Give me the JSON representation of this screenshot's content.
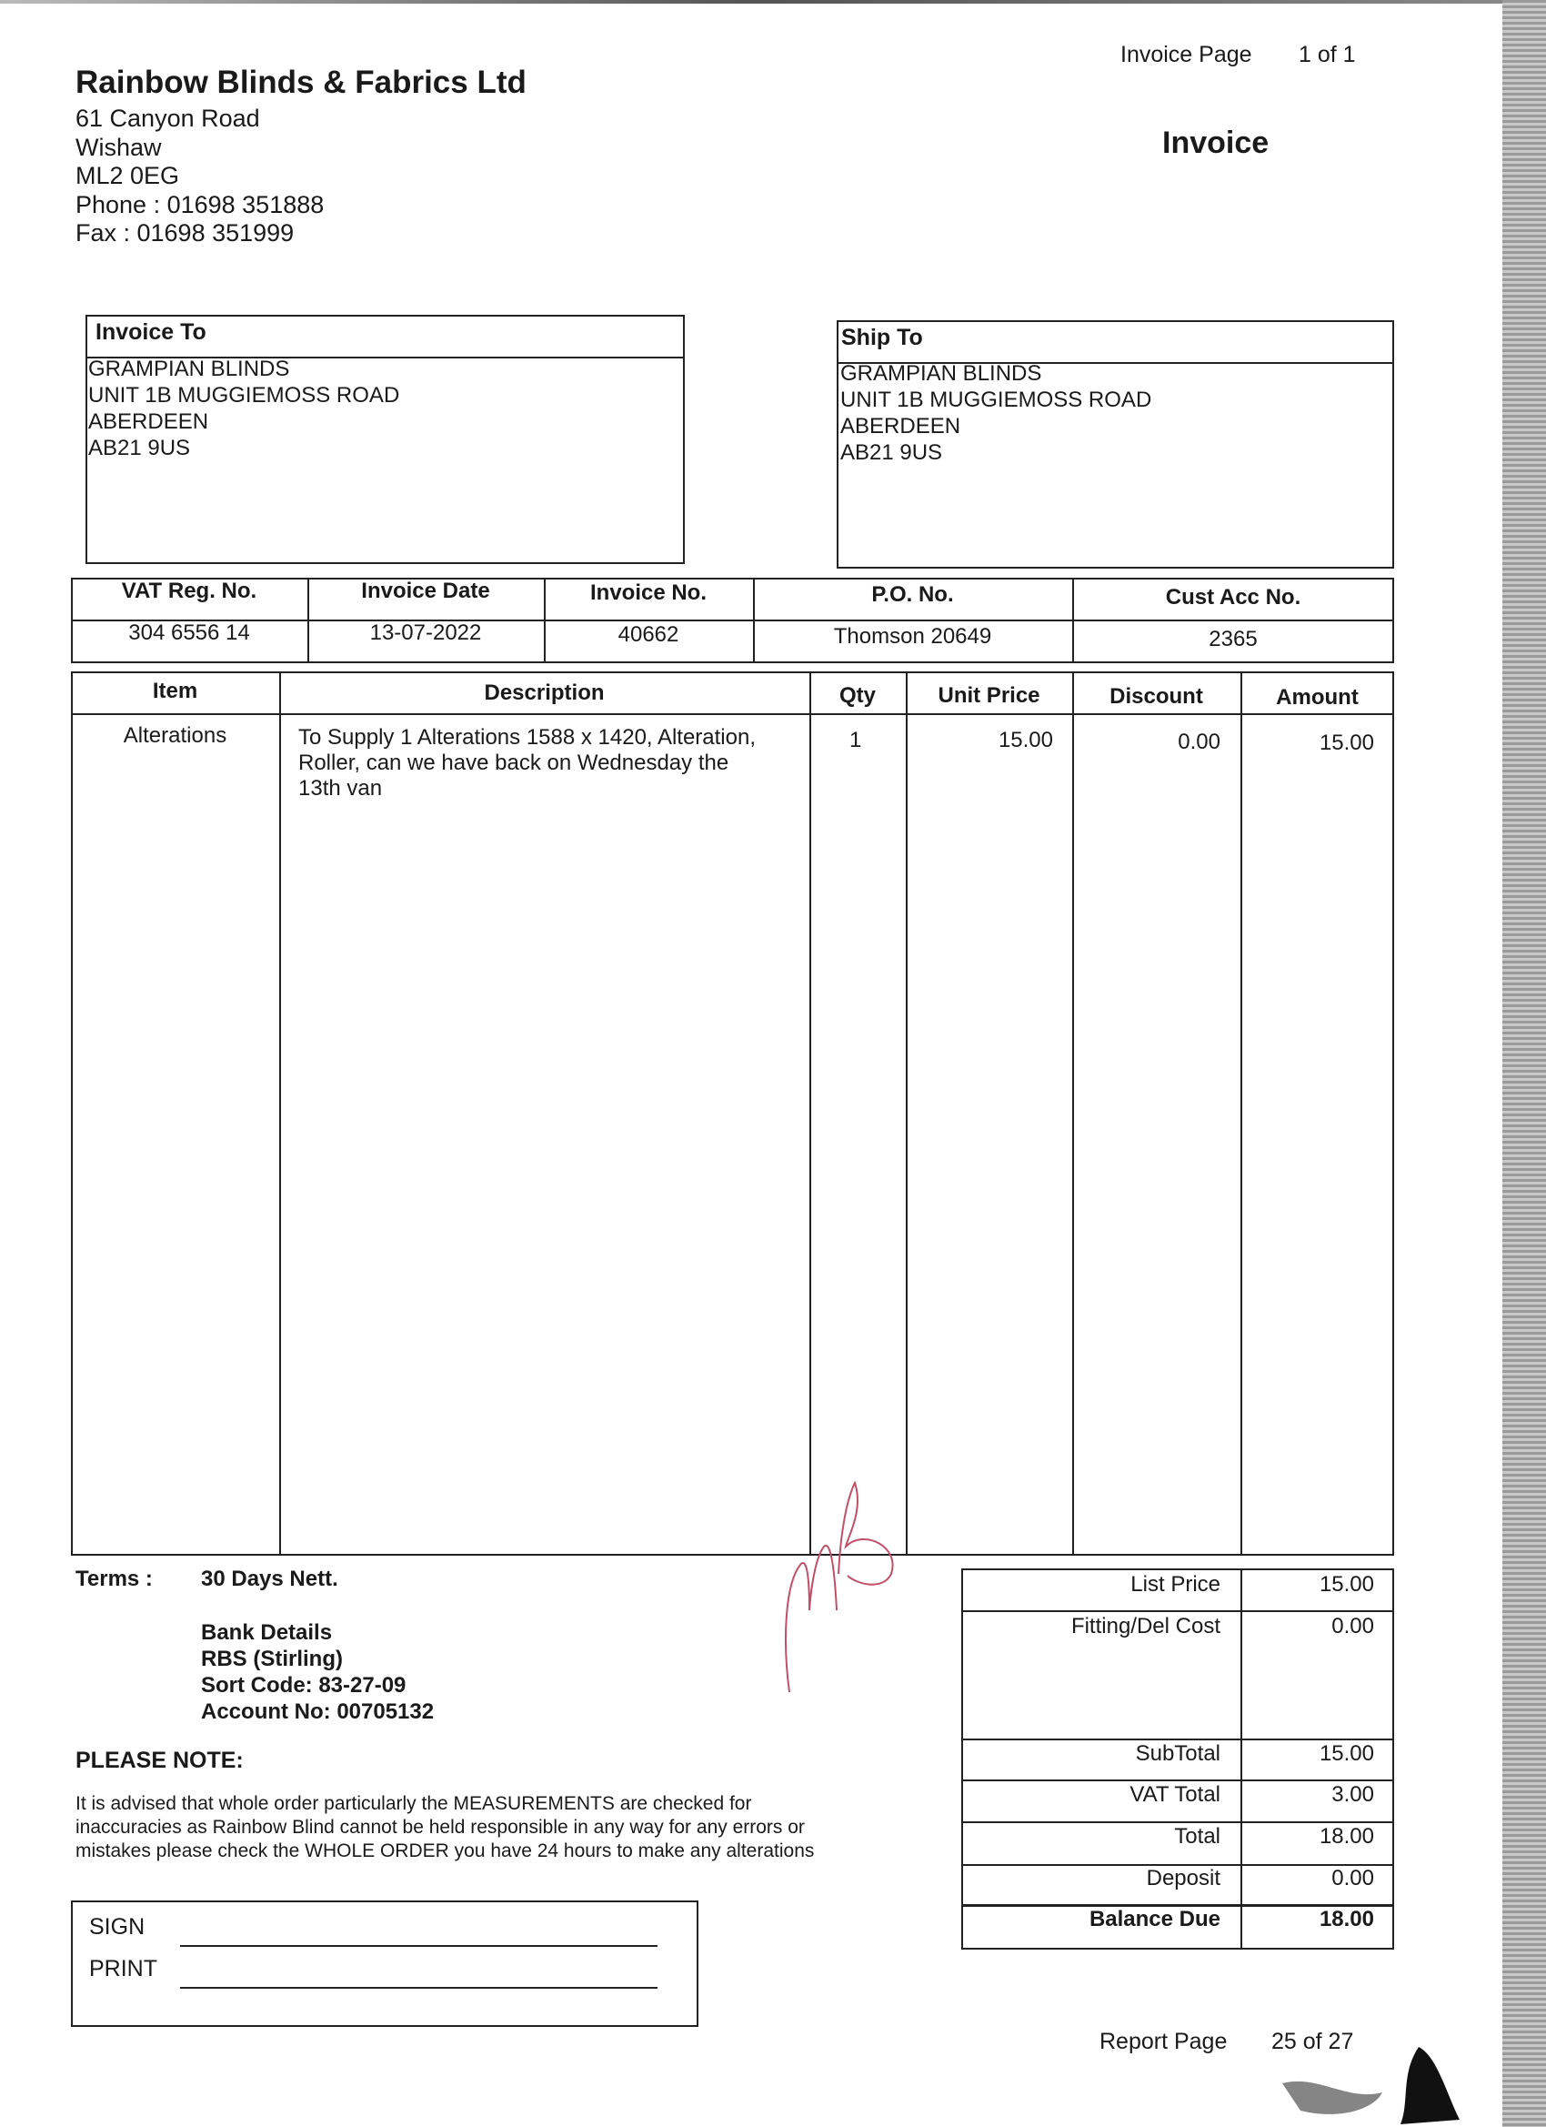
{
  "header": {
    "page_label": "Invoice  Page",
    "page_value": "1 of 1",
    "doc_title": "Invoice"
  },
  "company": {
    "name": "Rainbow Blinds & Fabrics Ltd",
    "address": [
      "61 Canyon Road",
      "Wishaw",
      "ML2 0EG"
    ],
    "phone": "Phone : 01698 351888",
    "fax": "Fax : 01698 351999"
  },
  "invoice_to": {
    "label": "Invoice To",
    "lines": [
      "GRAMPIAN BLINDS",
      "UNIT 1B MUGGIEMOSS ROAD",
      "ABERDEEN",
      "AB21 9US"
    ]
  },
  "ship_to": {
    "label": "Ship To",
    "lines": [
      "GRAMPIAN BLINDS",
      "UNIT 1B MUGGIEMOSS ROAD",
      "ABERDEEN",
      "AB21 9US"
    ]
  },
  "info": {
    "headers": [
      "VAT Reg. No.",
      "Invoice Date",
      "Invoice No.",
      "P.O. No.",
      "Cust Acc No."
    ],
    "values": [
      "304 6556 14",
      "13-07-2022",
      "40662",
      "Thomson 20649",
      "2365"
    ]
  },
  "items": {
    "headers": [
      "Item",
      "Description",
      "Qty",
      "Unit Price",
      "Discount",
      "Amount"
    ],
    "rows": [
      {
        "item": "Alterations",
        "description": [
          "To Supply 1 Alterations  1588 x 1420, Alteration,",
          "Roller, can we have back on Wednesday the",
          "13th van"
        ],
        "qty": "1",
        "unit_price": "15.00",
        "discount": "0.00",
        "amount": "15.00"
      }
    ]
  },
  "terms": {
    "label": "Terms :",
    "value": "30 Days Nett.",
    "bank": [
      "Bank Details",
      "RBS (Stirling)",
      "Sort Code: 83-27-09",
      "Account No: 00705132"
    ]
  },
  "note": {
    "title": "PLEASE NOTE:",
    "lines": [
      "It is advised that whole order particularly the MEASUREMENTS are checked for",
      "inaccuracies as Rainbow Blind cannot be held responsible in any way for any errors or",
      "mistakes please check the WHOLE ORDER you have 24 hours to make any alterations"
    ]
  },
  "sign": {
    "sign_label": "SIGN",
    "print_label": "PRINT"
  },
  "totals": {
    "list_price": {
      "label": "List Price",
      "value": "15.00"
    },
    "fitting": {
      "label": "Fitting/Del Cost",
      "value": "0.00"
    },
    "subtotal": {
      "label": "SubTotal",
      "value": "15.00"
    },
    "vat": {
      "label": "VAT Total",
      "value": "3.00"
    },
    "total": {
      "label": "Total",
      "value": "18.00"
    },
    "deposit": {
      "label": "Deposit",
      "value": "0.00"
    },
    "balance": {
      "label": "Balance Due",
      "value": "18.00"
    }
  },
  "footer": {
    "report_label": "Report Page",
    "report_value": "25 of 27"
  },
  "colors": {
    "signature_ink": "#c0506a",
    "scanner_band": "#9a9a9a"
  }
}
